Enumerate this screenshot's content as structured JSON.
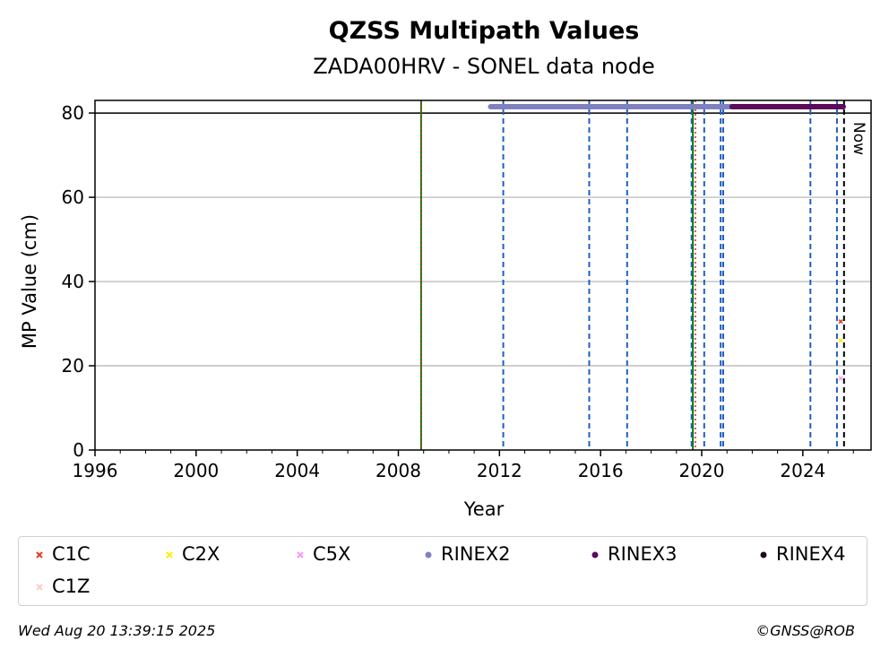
{
  "chart_data": {
    "type": "scatter",
    "title": "QZSS Multipath Values",
    "subtitle": "ZADA00HRV - SONEL data node",
    "xlabel": "Year",
    "ylabel": "MP Value (cm)",
    "xlim": [
      1996,
      2026.7
    ],
    "ylim": [
      0,
      83
    ],
    "x_ticks": [
      1996,
      2000,
      2004,
      2008,
      2012,
      2016,
      2020,
      2024
    ],
    "y_ticks": [
      0,
      20,
      40,
      60,
      80
    ],
    "grid": "horizontal",
    "reference_line_y": 80,
    "now_label": "Now",
    "now_x": 2025.63,
    "event_lines": [
      {
        "x": 2008.9,
        "color": "#008000",
        "style": "solid"
      },
      {
        "x": 2008.9,
        "color": "#d62728",
        "style": "dotted"
      },
      {
        "x": 2019.65,
        "color": "#008000",
        "style": "solid"
      },
      {
        "x": 2019.75,
        "color": "#d62728",
        "style": "dotted"
      },
      {
        "x": 2012.15,
        "color": "#1f5fbf",
        "style": "dashed"
      },
      {
        "x": 2015.55,
        "color": "#1f5fbf",
        "style": "dashed"
      },
      {
        "x": 2017.05,
        "color": "#1f5fbf",
        "style": "dashed"
      },
      {
        "x": 2019.6,
        "color": "#1f5fbf",
        "style": "dashed"
      },
      {
        "x": 2020.1,
        "color": "#1f5fbf",
        "style": "dashed"
      },
      {
        "x": 2020.75,
        "color": "#1f5fbf",
        "style": "dashed"
      },
      {
        "x": 2020.85,
        "color": "#1f5fbf",
        "style": "dashed"
      },
      {
        "x": 2024.3,
        "color": "#1f5fbf",
        "style": "dashed"
      },
      {
        "x": 2025.35,
        "color": "#1f5fbf",
        "style": "dashed"
      }
    ],
    "rinex_bars": [
      {
        "name": "RINEX2",
        "x_start": 2011.65,
        "x_end": 2021.2,
        "y": 81.5,
        "color": "#8080c0"
      },
      {
        "name": "RINEX3",
        "x_start": 2021.2,
        "x_end": 2025.6,
        "y": 81.5,
        "color": "#5c0a5c"
      }
    ],
    "series": [
      {
        "name": "C1C",
        "color": "#e8362b",
        "marker": "x",
        "points": [
          {
            "x": 2025.5,
            "y": 30.5
          }
        ]
      },
      {
        "name": "C2X",
        "color": "#ffee00",
        "marker": "x",
        "points": [
          {
            "x": 2025.5,
            "y": 26
          }
        ]
      },
      {
        "name": "C5X",
        "color": "#f59af5",
        "marker": "x",
        "points": [
          {
            "x": 2025.5,
            "y": 17
          }
        ]
      },
      {
        "name": "RINEX2",
        "color": "#8080c0",
        "marker": "o",
        "points": []
      },
      {
        "name": "RINEX3",
        "color": "#5c0a5c",
        "marker": "o",
        "points": []
      },
      {
        "name": "RINEX4",
        "color": "#1a0a1a",
        "marker": "o",
        "points": []
      },
      {
        "name": "C1Z",
        "color": "#f8d0c8",
        "marker": "x",
        "points": []
      }
    ]
  },
  "footer": {
    "timestamp": "Wed Aug 20 13:39:15 2025",
    "credit": "©GNSS@ROB"
  }
}
